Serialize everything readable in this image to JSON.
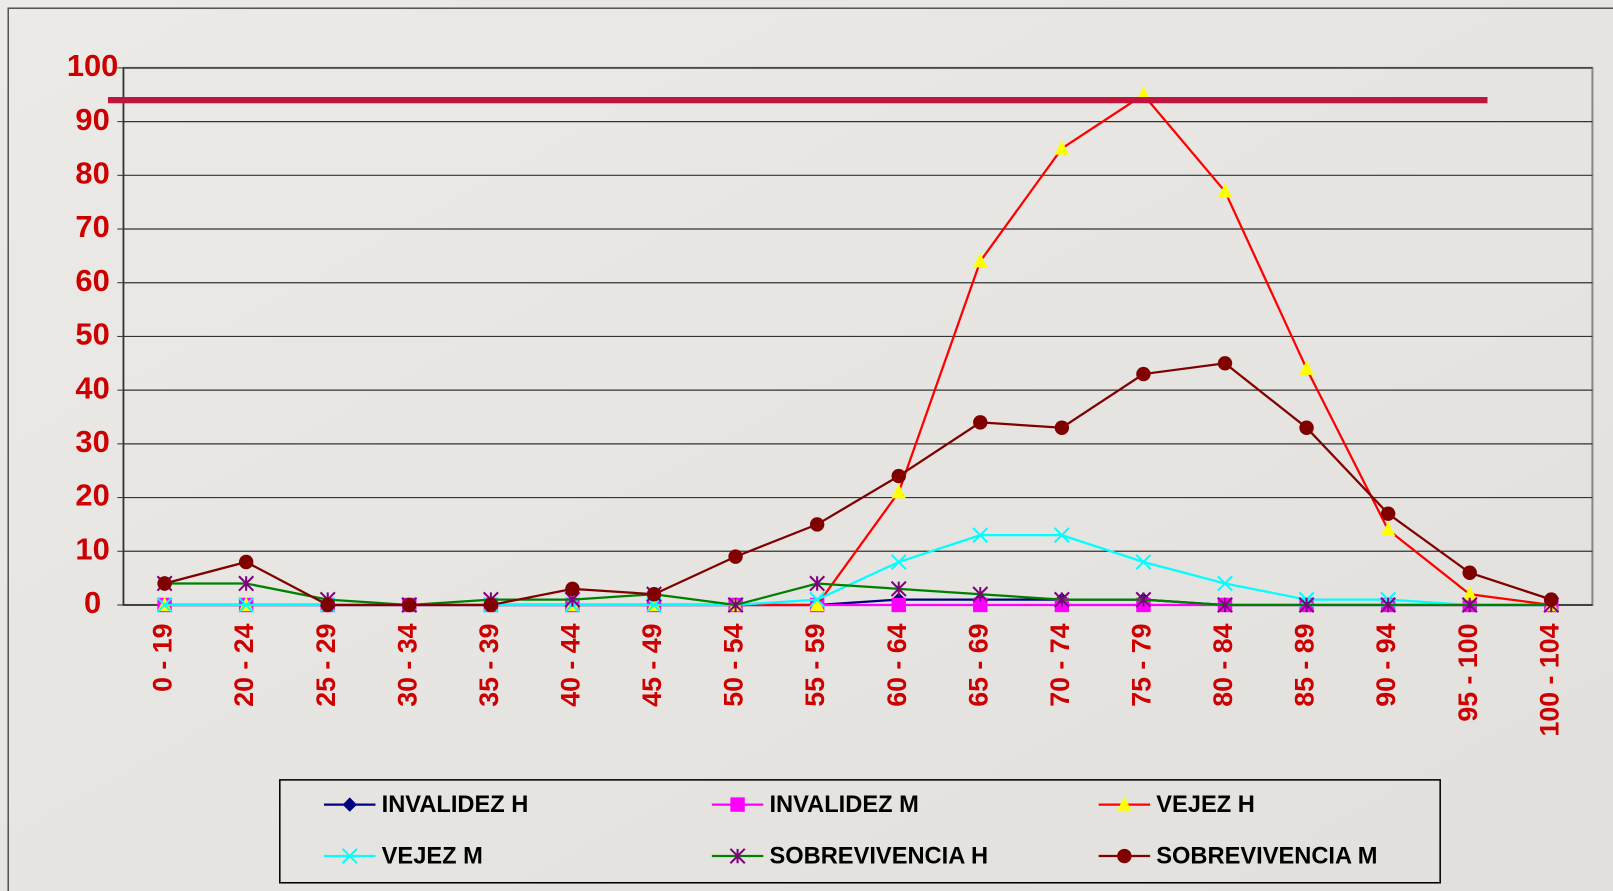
{
  "chart_data": {
    "type": "line",
    "categories": [
      "0 - 19",
      "20 - 24",
      "25 - 29",
      "30 - 34",
      "35 - 39",
      "40 - 44",
      "45 - 49",
      "50 - 54",
      "55 - 59",
      "60 - 64",
      "65 - 69",
      "70 - 74",
      "75 - 79",
      "80 - 84",
      "85 - 89",
      "90 - 94",
      "95 - 100",
      "100 - 104"
    ],
    "series": [
      {
        "name": "INVALIDEZ H",
        "color": "#000080",
        "marker": "diamond",
        "values": [
          0,
          0,
          0,
          0,
          0,
          0,
          0,
          0,
          0,
          1,
          1,
          1,
          1,
          0,
          0,
          0,
          0,
          0
        ]
      },
      {
        "name": "INVALIDEZ M",
        "color": "#ff00ff",
        "marker": "square",
        "values": [
          0,
          0,
          0,
          0,
          0,
          0,
          0,
          0,
          0,
          0,
          0,
          0,
          0,
          0,
          0,
          0,
          0,
          0
        ]
      },
      {
        "name": "VEJEZ H",
        "color": "#ff0000",
        "marker": "triangle",
        "marker_color": "#ffff00",
        "values": [
          0,
          0,
          0,
          0,
          0,
          0,
          0,
          0,
          0,
          21,
          64,
          85,
          95,
          77,
          44,
          14,
          2,
          0
        ]
      },
      {
        "name": "VEJEZ M",
        "color": "#00ffff",
        "marker": "x",
        "values": [
          0,
          0,
          0,
          0,
          0,
          0,
          0,
          0,
          1,
          8,
          13,
          13,
          8,
          4,
          1,
          1,
          0,
          0
        ]
      },
      {
        "name": "SOBREVIVENCIA H",
        "color": "#008000",
        "marker": "star",
        "marker_color": "#800080",
        "values": [
          4,
          4,
          1,
          0,
          1,
          1,
          2,
          0,
          4,
          3,
          2,
          1,
          1,
          0,
          0,
          0,
          0,
          0
        ]
      },
      {
        "name": "SOBREVIVENCIA M",
        "color": "#800000",
        "marker": "circle",
        "values": [
          4,
          8,
          0,
          0,
          0,
          3,
          2,
          9,
          15,
          24,
          34,
          33,
          43,
          45,
          33,
          17,
          6,
          1
        ]
      }
    ],
    "reference_line": {
      "value": 94,
      "color": "#c0143c"
    },
    "ylim": [
      0,
      100
    ],
    "yticks": [
      0,
      10,
      20,
      30,
      40,
      50,
      60,
      70,
      80,
      90,
      100
    ],
    "grid": true,
    "legend": "bottom"
  }
}
